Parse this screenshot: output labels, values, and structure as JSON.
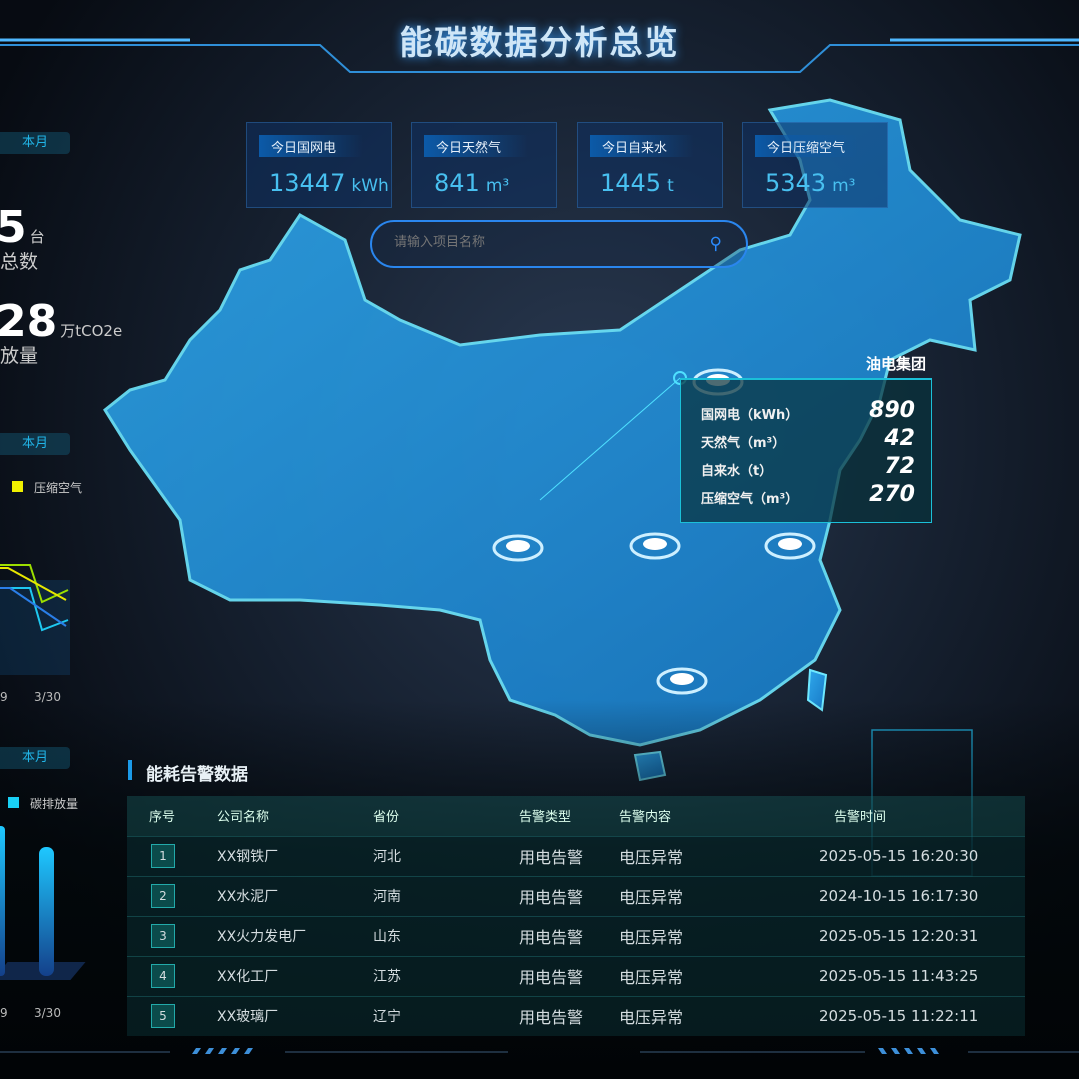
{
  "header": {
    "title": "能碳数据分析总览"
  },
  "stats": [
    {
      "label": "今日国网电",
      "value": "13447",
      "unit": "kWh"
    },
    {
      "label": "今日天然气",
      "value": "841",
      "unit": "m³"
    },
    {
      "label": "今日自来水",
      "value": "1445",
      "unit": "t"
    },
    {
      "label": "今日压缩空气",
      "value": "5343",
      "unit": "m³"
    }
  ],
  "search": {
    "placeholder": "请输入项目名称",
    "icon": "search-icon"
  },
  "left": {
    "period_label": "本月",
    "device_count": "5",
    "device_unit": "台",
    "device_label": "总数",
    "emission_value": "28",
    "emission_unit": "万tCO2e",
    "emission_label": "放量",
    "line_legend": "压缩空气",
    "line_legend_color": "#f0f000",
    "line_x": [
      "9",
      "3/30"
    ],
    "bar_legend": "碳排放量",
    "bar_legend_color": "#19d0f5",
    "bar_x": [
      "9",
      "3/30"
    ]
  },
  "tooltip": {
    "title": "油电集团",
    "rows": [
      {
        "label": "国网电（kWh）",
        "value": "890"
      },
      {
        "label": "天然气（m³）",
        "value": "42"
      },
      {
        "label": "自来水（t）",
        "value": "72"
      },
      {
        "label": "压缩空气（m³）",
        "value": "270"
      }
    ]
  },
  "alarms": {
    "title": "能耗告警数据",
    "columns": [
      "序号",
      "公司名称",
      "省份",
      "告警类型",
      "告警内容",
      "告警时间"
    ],
    "rows": [
      [
        "1",
        "XX钢铁厂",
        "河北",
        "用电告警",
        "电压异常",
        "2025-05-15 16:20:30"
      ],
      [
        "2",
        "XX水泥厂",
        "河南",
        "用电告警",
        "电压异常",
        "2024-10-15 16:17:30"
      ],
      [
        "3",
        "XX火力发电厂",
        "山东",
        "用电告警",
        "电压异常",
        "2025-05-15 12:20:31"
      ],
      [
        "4",
        "XX化工厂",
        "江苏",
        "用电告警",
        "电压异常",
        "2025-05-15 11:43:25"
      ],
      [
        "5",
        "XX玻璃厂",
        "辽宁",
        "用电告警",
        "电压异常",
        "2025-05-15 11:22:11"
      ]
    ]
  }
}
